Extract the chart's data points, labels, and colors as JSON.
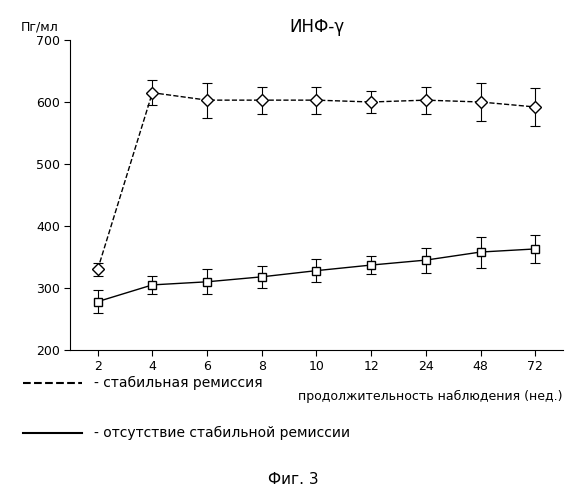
{
  "title": "ИНФ-γ",
  "ylabel": "Пг/мл",
  "xlabel": "продолжительность наблюдения (нед.)",
  "fig_label": "Фиг. 3",
  "x_ticks": [
    2,
    4,
    6,
    8,
    10,
    12,
    24,
    48,
    72
  ],
  "ylim": [
    200,
    700
  ],
  "yticks": [
    200,
    300,
    400,
    500,
    600,
    700
  ],
  "dashed_y": [
    330,
    615,
    603,
    603,
    603,
    600,
    603,
    600,
    592
  ],
  "dashed_yerr": [
    10,
    20,
    28,
    22,
    22,
    18,
    22,
    30,
    30
  ],
  "solid_y": [
    278,
    305,
    310,
    318,
    328,
    337,
    345,
    358,
    363
  ],
  "solid_yerr": [
    18,
    15,
    20,
    18,
    18,
    15,
    20,
    25,
    22
  ],
  "legend_dashed_label": "- стабильная ремиссия",
  "legend_solid_label": "- отсутствие стабильной ремиссии",
  "line_color": "#000000",
  "background_color": "#ffffff",
  "font_size_title": 12,
  "font_size_ylabel": 9,
  "font_size_ticks": 9,
  "font_size_legend": 10,
  "font_size_xlabel": 9,
  "font_size_fig_label": 11
}
